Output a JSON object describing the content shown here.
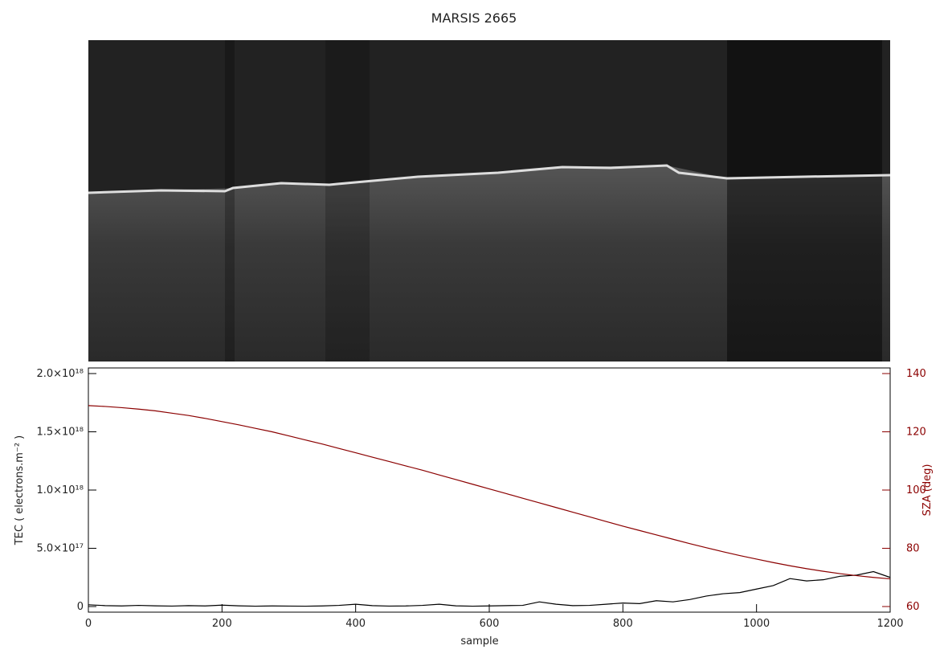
{
  "chart_data": {
    "type": "line",
    "title": "MARSIS 2665",
    "x_label": "sample",
    "y_label": "TEC ( electrons.m⁻² )",
    "y2_label": "SZA (deg)",
    "x": [
      0,
      25,
      50,
      75,
      100,
      125,
      150,
      175,
      200,
      225,
      250,
      275,
      300,
      325,
      350,
      375,
      400,
      425,
      450,
      475,
      500,
      525,
      550,
      575,
      600,
      625,
      650,
      675,
      700,
      725,
      750,
      775,
      800,
      825,
      850,
      875,
      900,
      925,
      950,
      975,
      1000,
      1025,
      1050,
      1075,
      1100,
      1125,
      1150,
      1175,
      1200
    ],
    "xlim": [
      0,
      1200
    ],
    "xticks": [
      0,
      200,
      400,
      600,
      800,
      1000,
      1200
    ],
    "ylim": [
      0,
      2e+18
    ],
    "yticks": [
      {
        "value": 0,
        "label": "0"
      },
      {
        "value": 5e+17,
        "label": "5.0×10¹⁷"
      },
      {
        "value": 1e+18,
        "label": "1.0×10¹⁸"
      },
      {
        "value": 1.5e+18,
        "label": "1.5×10¹⁸"
      },
      {
        "value": 2e+18,
        "label": "2.0×10¹⁸"
      }
    ],
    "y2lim": [
      60,
      140
    ],
    "y2ticks": [
      60,
      80,
      100,
      120,
      140
    ],
    "series": [
      {
        "name": "TEC",
        "color": "#000000",
        "values": [
          1.5e+16,
          8000000000000000.0,
          5000000000000000.0,
          1e+16,
          6000000000000000.0,
          4000000000000000.0,
          8000000000000000.0,
          5000000000000000.0,
          1.2e+16,
          6000000000000000.0,
          3000000000000000.0,
          5000000000000000.0,
          4000000000000000.0,
          3000000000000000.0,
          5000000000000000.0,
          1e+16,
          2e+16,
          8000000000000000.0,
          4000000000000000.0,
          5000000000000000.0,
          1e+16,
          2e+16,
          6000000000000000.0,
          3000000000000000.0,
          5000000000000000.0,
          8000000000000000.0,
          1e+16,
          4e+16,
          2e+16,
          8000000000000000.0,
          1e+16,
          2e+16,
          3e+16,
          2.5e+16,
          5e+16,
          4e+16,
          6e+16,
          9e+16,
          1.1e+17,
          1.2e+17,
          1.5e+17,
          1.8e+17,
          2.4e+17,
          2.2e+17,
          2.3e+17,
          2.6e+17,
          2.7e+17,
          3e+17,
          2.5e+17
        ]
      },
      {
        "name": "SZA",
        "color": "#8b0000",
        "axis": "y2",
        "values": [
          129,
          128.7,
          128.3,
          127.8,
          127.2,
          126.4,
          125.6,
          124.6,
          123.5,
          122.4,
          121.2,
          120,
          118.6,
          117.2,
          115.8,
          114.3,
          112.8,
          111.3,
          109.8,
          108.3,
          106.8,
          105.2,
          103.6,
          102,
          100.4,
          98.8,
          97.2,
          95.6,
          94,
          92.4,
          90.8,
          89.2,
          87.6,
          86.1,
          84.6,
          83.1,
          81.6,
          80.2,
          78.8,
          77.5,
          76.3,
          75.1,
          74,
          73,
          72.1,
          71.3,
          70.6,
          70,
          69.5
        ]
      }
    ]
  }
}
